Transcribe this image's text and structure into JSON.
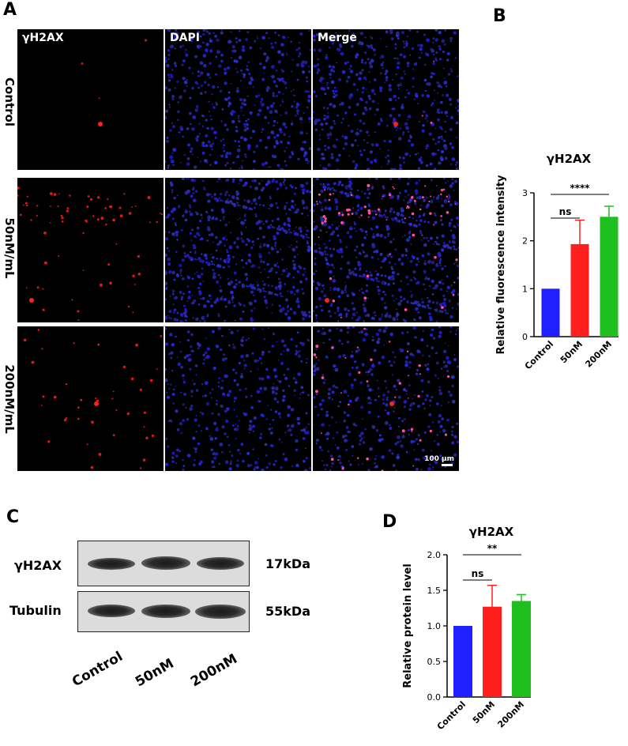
{
  "panels": {
    "A": "A",
    "B": "B",
    "C": "C",
    "D": "D"
  },
  "microscopy": {
    "columns": [
      "γH2AX",
      "DAPI",
      "Merge"
    ],
    "rows": [
      "Control",
      "50nM/mL",
      "200nM/mL"
    ],
    "scale_bar": "100 μm"
  },
  "western": {
    "rows": [
      {
        "label": "γH2AX",
        "size": "17kDa"
      },
      {
        "label": "Tubulin",
        "size": "55kDa"
      }
    ],
    "lanes": [
      "Control",
      "50nM",
      "200nM"
    ]
  },
  "colors": {
    "control": "#1f1fff",
    "50nM": "#ff1f1f",
    "200nM": "#1fbf1f"
  },
  "chart_data": [
    {
      "type": "bar",
      "title": "γH2AX",
      "ylabel": "Relative fluorescence intensity",
      "categories": [
        "Control",
        "50nM",
        "200nM"
      ],
      "values": [
        1.0,
        1.93,
        2.5
      ],
      "errors": [
        0,
        0.5,
        0.22
      ],
      "ylim": [
        0,
        3
      ],
      "yticks": [
        "0",
        "1",
        "2",
        "3"
      ],
      "significance": [
        {
          "label": "ns",
          "from": 0,
          "to": 1
        },
        {
          "label": "****",
          "from": 0,
          "to": 2
        }
      ]
    },
    {
      "type": "bar",
      "title": "γH2AX",
      "ylabel": "Relative protein level",
      "categories": [
        "Control",
        "50nM",
        "200nM"
      ],
      "values": [
        1.0,
        1.27,
        1.35
      ],
      "errors": [
        0,
        0.3,
        0.09
      ],
      "ylim": [
        0,
        2
      ],
      "yticks": [
        "0.0",
        "0.5",
        "1.0",
        "1.5",
        "2.0"
      ],
      "significance": [
        {
          "label": "ns",
          "from": 0,
          "to": 1
        },
        {
          "label": "**",
          "from": 0,
          "to": 2
        }
      ]
    }
  ]
}
